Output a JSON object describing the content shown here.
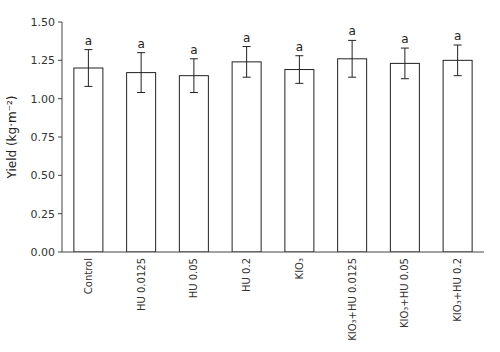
{
  "chart_data": {
    "type": "bar",
    "categories": [
      "Control",
      "HU 0.0125",
      "HU 0.05",
      "HU 0.2",
      "KIO₃",
      "KIO₃+HU 0.0125",
      "KIO₃+HU 0.05",
      "KIO₃+HU 0.2"
    ],
    "values": [
      1.2,
      1.17,
      1.15,
      1.24,
      1.19,
      1.26,
      1.23,
      1.25
    ],
    "errors": [
      0.12,
      0.13,
      0.11,
      0.1,
      0.09,
      0.12,
      0.1,
      0.1
    ],
    "annotations": [
      "a",
      "a",
      "a",
      "a",
      "a",
      "a",
      "a",
      "a"
    ],
    "ylabel": "Yield (kg·m⁻²)",
    "ylim": [
      0,
      1.5
    ],
    "yticks": [
      {
        "value": 0.0,
        "label": "0.00"
      },
      {
        "value": 0.25,
        "label": "0.25"
      },
      {
        "value": 0.5,
        "label": "0.50"
      },
      {
        "value": 0.75,
        "label": "0.75"
      },
      {
        "value": 1.0,
        "label": "1.00"
      },
      {
        "value": 1.25,
        "label": "1.25"
      },
      {
        "value": 1.5,
        "label": "1.50"
      }
    ],
    "color": "#ffffff",
    "grid": false
  }
}
